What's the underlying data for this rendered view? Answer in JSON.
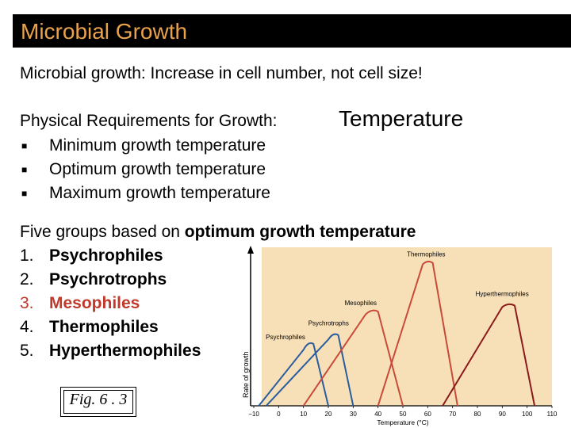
{
  "title": "Microbial Growth",
  "intro": "Microbial growth:  Increase in cell number, not cell size!",
  "physical": {
    "label": "Physical Requirements for Growth:",
    "emphasis": "Temperature",
    "bullets": [
      "Minimum growth temperature",
      "Optimum growth temperature",
      "Maximum growth temperature"
    ]
  },
  "groups": {
    "intro_prefix": "Five groups based on ",
    "intro_bold": "optimum growth temperature",
    "items": [
      {
        "num": "1.",
        "label": "Psychrophiles"
      },
      {
        "num": "2.",
        "label": "Psychrotrophs"
      },
      {
        "num": "3.",
        "label": "Mesophiles"
      },
      {
        "num": "4.",
        "label": "Thermophiles"
      },
      {
        "num": "5.",
        "label": "Hyperthermophiles"
      }
    ]
  },
  "figure_caption": "Fig. 6 . 3",
  "colors": {
    "title_bar": "#000000",
    "title_text": "#e9a24a",
    "highlight_item": "#c0392b",
    "chart_bg": "#f7e0b8"
  },
  "chart_data": {
    "type": "line",
    "xlabel": "Temperature (°C)",
    "ylabel": "Rate of growth",
    "x_ticks": [
      "−10",
      "0",
      "10",
      "20",
      "30",
      "40",
      "50",
      "60",
      "70",
      "80",
      "90",
      "100",
      "110"
    ],
    "xlim": [
      -10,
      110
    ],
    "series": [
      {
        "name": "Psychrophiles",
        "color": "#2a5d9f",
        "points": [
          [
            -8,
            0
          ],
          [
            10,
            0.38
          ],
          [
            14,
            0.42
          ],
          [
            20,
            0
          ]
        ]
      },
      {
        "name": "Psychrotrophs",
        "color": "#2a5d9f",
        "points": [
          [
            -5,
            0
          ],
          [
            20,
            0.45
          ],
          [
            24,
            0.48
          ],
          [
            30,
            0
          ]
        ]
      },
      {
        "name": "Mesophiles",
        "color": "#c94a3a",
        "points": [
          [
            10,
            0
          ],
          [
            35,
            0.62
          ],
          [
            40,
            0.64
          ],
          [
            50,
            0
          ]
        ]
      },
      {
        "name": "Thermophiles",
        "color": "#c94a3a",
        "points": [
          [
            40,
            0
          ],
          [
            58,
            0.96
          ],
          [
            62,
            0.97
          ],
          [
            72,
            0
          ]
        ]
      },
      {
        "name": "Hyperthermophiles",
        "color": "#8b1a1a",
        "points": [
          [
            66,
            0
          ],
          [
            90,
            0.67
          ],
          [
            95,
            0.68
          ],
          [
            103,
            0
          ]
        ]
      }
    ]
  }
}
